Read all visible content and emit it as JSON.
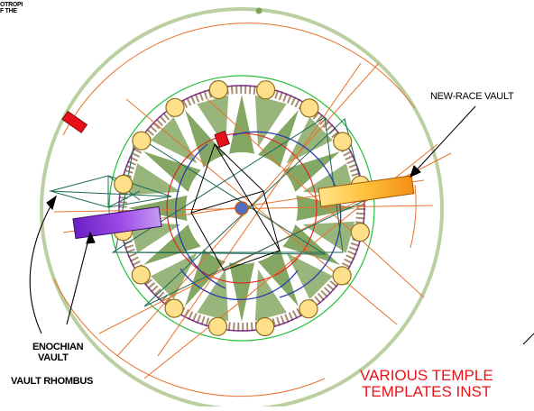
{
  "labels": {
    "corner_line1": "OTROPI",
    "corner_line2": "F THE",
    "new_race_vault": "NEW-RACE VAULT",
    "enochian_line1": "ENOCHIAN",
    "enochian_line2": "VAULT",
    "vault_rhombus": "VAULT RHOMBUS",
    "red_caption_line1": "VARIOUS TEMPLE",
    "red_caption_line2": "TEMPLATES INST"
  },
  "colors": {
    "outer_ring": "#8fae6a",
    "star_fill": "#7fa35c",
    "green_circle": "#25c13a",
    "purple_circle": "#7b2d86",
    "orange_line": "#e8712b",
    "red_line": "#e21d1d",
    "blue_line": "#2a3bb0",
    "teal_line": "#1f6a57",
    "node_fill": "#ffe08a",
    "node_stroke": "#8a6d1e",
    "vault_left": "#8a33d6",
    "vault_right": "#ffb22e",
    "red_marker": "#e5101a",
    "caption_red": "#e8141b"
  }
}
